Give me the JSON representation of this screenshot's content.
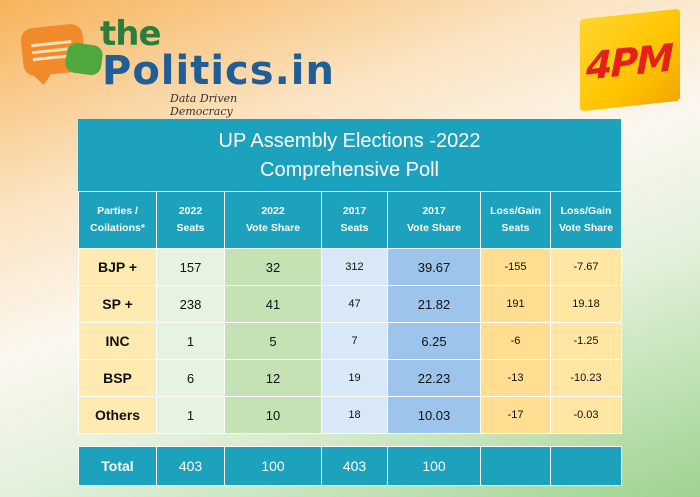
{
  "logo": {
    "word_the": "the",
    "word_politics": "Politics.in",
    "tagline": "Data Driven Democracy"
  },
  "brand": {
    "label": "4PM"
  },
  "poll": {
    "title_line1": "UP Assembly Elections -2022",
    "title_line2": "Comprehensive Poll",
    "headers": [
      {
        "line1": "Parties /",
        "line2": "Coilations*"
      },
      {
        "line1": "2022",
        "line2": "Seats"
      },
      {
        "line1": "2022",
        "line2": "Vote Share"
      },
      {
        "line1": "2017",
        "line2": "Seats"
      },
      {
        "line1": "2017",
        "line2": "Vote Share"
      },
      {
        "line1": "Loss/Gain",
        "line2": "Seats"
      },
      {
        "line1": "Loss/Gain",
        "line2": "Vote Share"
      }
    ],
    "rows": [
      {
        "party": "BJP +",
        "seats_2022": "157",
        "vote_2022": "32",
        "seats_2017": "312",
        "vote_2017": "39.67",
        "lg_seats": "-155",
        "lg_vote": "-7.67"
      },
      {
        "party": "SP +",
        "seats_2022": "238",
        "vote_2022": "41",
        "seats_2017": "47",
        "vote_2017": "21.82",
        "lg_seats": "191",
        "lg_vote": "19.18"
      },
      {
        "party": "INC",
        "seats_2022": "1",
        "vote_2022": "5",
        "seats_2017": "7",
        "vote_2017": "6.25",
        "lg_seats": "-6",
        "lg_vote": "-1.25"
      },
      {
        "party": "BSP",
        "seats_2022": "6",
        "vote_2022": "12",
        "seats_2017": "19",
        "vote_2017": "22.23",
        "lg_seats": "-13",
        "lg_vote": "-10.23"
      },
      {
        "party": "Others",
        "seats_2022": "1",
        "vote_2022": "10",
        "seats_2017": "18",
        "vote_2017": "10.03",
        "lg_seats": "-17",
        "lg_vote": "-0.03"
      }
    ],
    "total": {
      "label": "Total",
      "seats_2022": "403",
      "vote_2022": "100",
      "seats_2017": "403",
      "vote_2017": "100",
      "lg_seats": "",
      "lg_vote": ""
    }
  }
}
